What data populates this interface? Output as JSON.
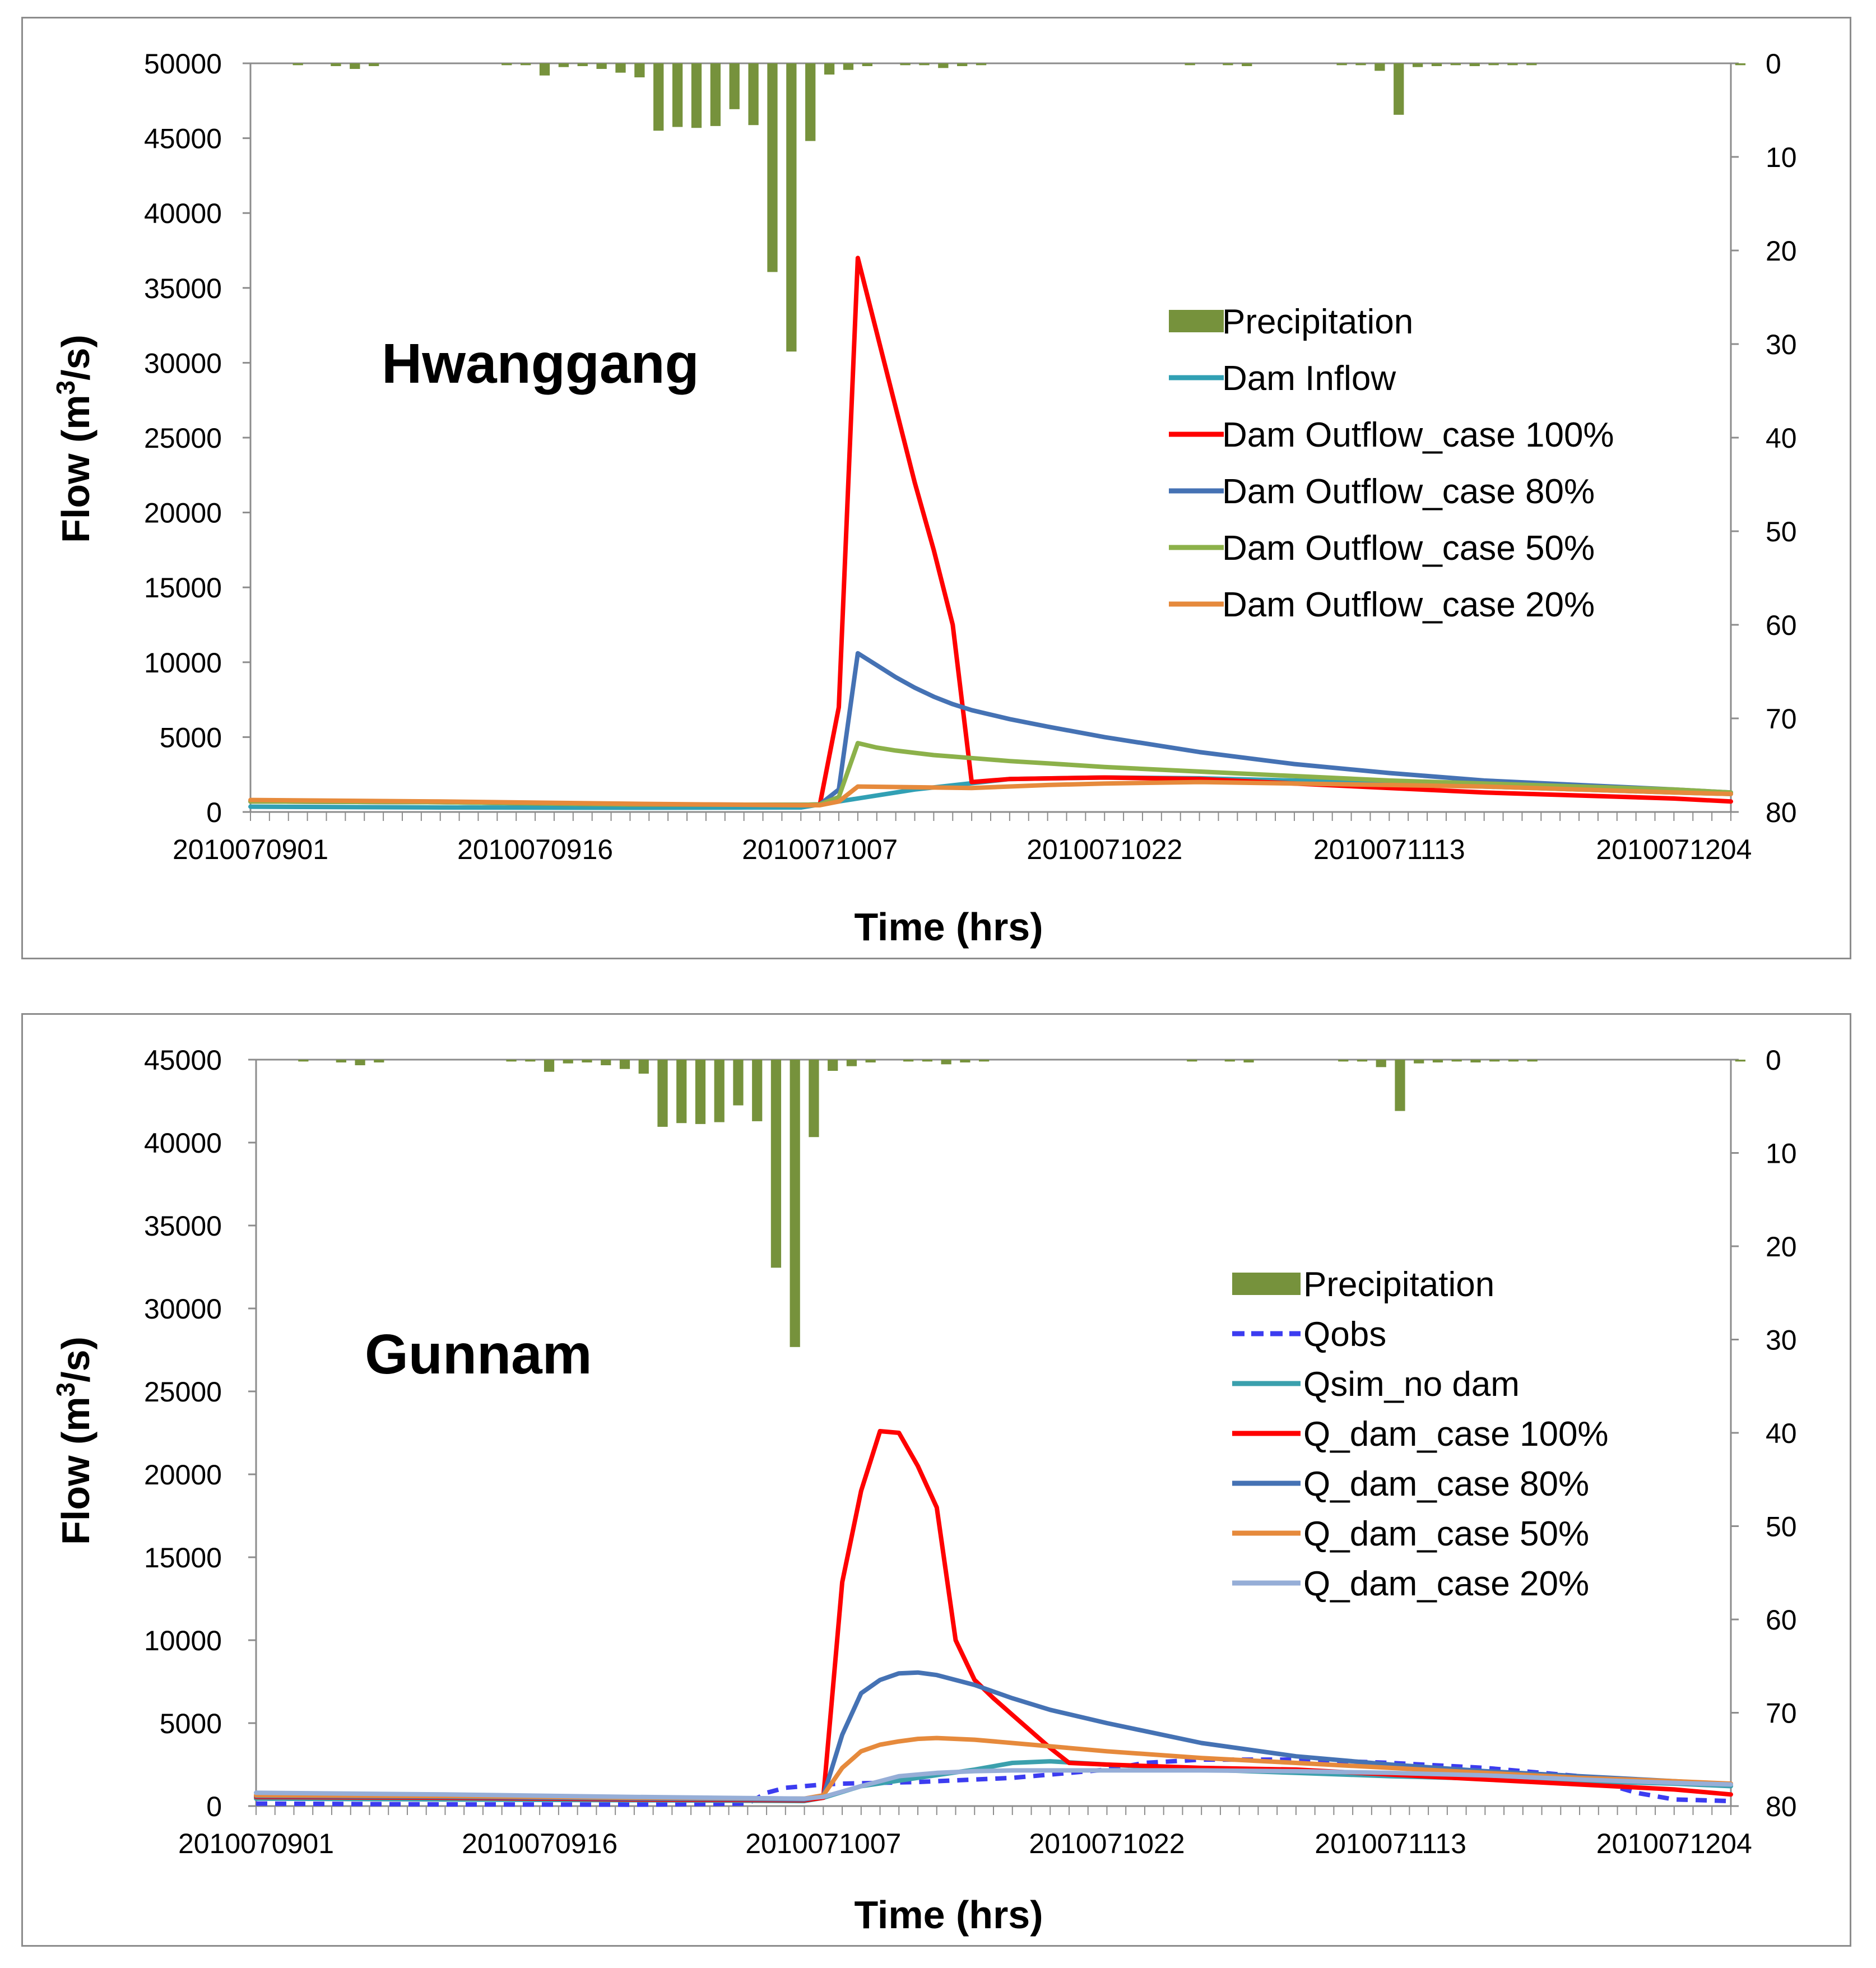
{
  "colors": {
    "precip": "#76923c",
    "dam_inflow": "#31a0b4",
    "case100": "#ff0000",
    "case80": "#4572b4",
    "case50_top": "#8cb14a",
    "case20_top": "#e68a3c",
    "qobs": "#3c3cf0",
    "qsim": "#3ba0ad",
    "case50_bottom": "#e68a3c",
    "case20_bottom": "#96aed7"
  },
  "chart_data": [
    {
      "id": "hwanggang",
      "type": "line",
      "title": "Hwanggang",
      "xlabel": "Time (hrs)",
      "ylabel": "Flow (m³/s)",
      "ylabel_left": {
        "main": "Flow (m",
        "sup": "3",
        "tail": "/s)"
      },
      "ylim": [
        0,
        50000
      ],
      "y_ticks": [
        0,
        5000,
        10000,
        15000,
        20000,
        25000,
        30000,
        35000,
        40000,
        45000,
        50000
      ],
      "y2_ticks": [
        0,
        10,
        20,
        30,
        40,
        50,
        60,
        70,
        80
      ],
      "y2lim": [
        0,
        80
      ],
      "y2_inverted": true,
      "x_range": [
        0,
        78
      ],
      "x_ticks": [
        0,
        15,
        30,
        45,
        60,
        75
      ],
      "x_tick_labels": [
        "2010070901",
        "2010070916",
        "2010071007",
        "2010071022",
        "2010071113",
        "2010071204"
      ],
      "precipitation": {
        "name": "Precipitation",
        "hours": [
          2,
          4,
          5,
          6,
          13,
          14,
          15,
          16,
          17,
          18,
          19,
          20,
          21,
          22,
          23,
          24,
          25,
          26,
          27,
          28,
          29,
          30,
          31,
          32,
          34,
          35,
          36,
          37,
          38,
          49,
          51,
          52,
          57,
          58,
          59,
          60,
          61,
          62,
          63,
          64,
          65,
          66,
          67,
          78
        ],
        "values": [
          0.2,
          0.3,
          0.6,
          0.3,
          0.2,
          0.2,
          1.3,
          0.4,
          0.3,
          0.6,
          1.0,
          1.5,
          7.2,
          6.8,
          6.9,
          6.7,
          4.9,
          6.6,
          22.3,
          30.8,
          8.3,
          1.2,
          0.7,
          0.3,
          0.2,
          0.2,
          0.5,
          0.3,
          0.2,
          0.2,
          0.2,
          0.3,
          0.2,
          0.2,
          0.8,
          5.5,
          0.4,
          0.3,
          0.2,
          0.3,
          0.2,
          0.2,
          0.2,
          0.2
        ]
      },
      "series": [
        {
          "name": "Dam Inflow",
          "colorKey": "dam_inflow",
          "dashed": false,
          "x": [
            0,
            10,
            20,
            29,
            30,
            35,
            40,
            45,
            50,
            55,
            60,
            65,
            70,
            75,
            78
          ],
          "y": [
            350,
            300,
            280,
            300,
            500,
            1500,
            2200,
            2300,
            2250,
            2100,
            2000,
            1700,
            1500,
            1300,
            1200
          ]
        },
        {
          "name": "Dam Outflow_case 100%",
          "colorKey": "case100",
          "dashed": false,
          "x": [
            0,
            10,
            20,
            29,
            30,
            31,
            32,
            33,
            34,
            35,
            36,
            37,
            38,
            39,
            40,
            45,
            50,
            55,
            60,
            65,
            70,
            75,
            78
          ],
          "y": [
            700,
            650,
            500,
            480,
            500,
            7000,
            37000,
            32000,
            27000,
            22000,
            17500,
            12500,
            2000,
            2100,
            2200,
            2300,
            2200,
            1900,
            1600,
            1300,
            1100,
            900,
            700
          ]
        },
        {
          "name": "Dam Outflow_case 80%",
          "colorKey": "case80",
          "dashed": false,
          "x": [
            0,
            10,
            20,
            29,
            30,
            31,
            32,
            33,
            34,
            35,
            36,
            37,
            38,
            40,
            42,
            45,
            50,
            55,
            60,
            65,
            70,
            75,
            78
          ],
          "y": [
            700,
            650,
            500,
            480,
            500,
            1500,
            10600,
            9800,
            9000,
            8300,
            7700,
            7200,
            6800,
            6200,
            5700,
            5000,
            4000,
            3200,
            2600,
            2100,
            1800,
            1500,
            1300
          ]
        },
        {
          "name": "Dam Outflow_case 50%",
          "colorKey": "case50_top",
          "dashed": false,
          "x": [
            0,
            10,
            20,
            29,
            30,
            31,
            32,
            33,
            34,
            35,
            36,
            37,
            38,
            40,
            42,
            45,
            50,
            55,
            60,
            65,
            70,
            75,
            78
          ],
          "y": [
            700,
            650,
            500,
            480,
            500,
            1000,
            4600,
            4300,
            4100,
            3950,
            3800,
            3700,
            3600,
            3400,
            3250,
            3000,
            2700,
            2400,
            2100,
            1900,
            1700,
            1500,
            1300
          ]
        },
        {
          "name": "Dam Outflow_case 20%",
          "colorKey": "case20_top",
          "dashed": false,
          "x": [
            0,
            10,
            20,
            29,
            30,
            31,
            32,
            35,
            38,
            42,
            45,
            50,
            55,
            60,
            65,
            70,
            75,
            78
          ],
          "y": [
            800,
            700,
            550,
            450,
            450,
            700,
            1700,
            1650,
            1600,
            1800,
            1900,
            2000,
            1900,
            1800,
            1700,
            1500,
            1300,
            1200
          ]
        }
      ]
    },
    {
      "id": "gunnam",
      "type": "line",
      "title": "Gunnam",
      "xlabel": "Time (hrs)",
      "ylabel": "Flow (m³/s)",
      "ylabel_left": {
        "main": "Flow (m",
        "sup": "3",
        "tail": "/s)"
      },
      "ylim": [
        0,
        45000
      ],
      "y_ticks": [
        0,
        5000,
        10000,
        15000,
        20000,
        25000,
        30000,
        35000,
        40000,
        45000
      ],
      "y2_ticks": [
        0,
        10,
        20,
        30,
        40,
        50,
        60,
        70,
        80
      ],
      "y2lim": [
        0,
        80
      ],
      "y2_inverted": true,
      "x_range": [
        0,
        78
      ],
      "x_ticks": [
        0,
        15,
        30,
        45,
        60,
        75
      ],
      "x_tick_labels": [
        "2010070901",
        "2010070916",
        "2010071007",
        "2010071022",
        "2010071113",
        "2010071204"
      ],
      "precipitation": {
        "name": "Precipitation",
        "hours": [
          2,
          4,
          5,
          6,
          13,
          14,
          15,
          16,
          17,
          18,
          19,
          20,
          21,
          22,
          23,
          24,
          25,
          26,
          27,
          28,
          29,
          30,
          31,
          32,
          34,
          35,
          36,
          37,
          38,
          49,
          51,
          52,
          57,
          58,
          59,
          60,
          61,
          62,
          63,
          64,
          65,
          66,
          67,
          78
        ],
        "values": [
          0.2,
          0.3,
          0.6,
          0.3,
          0.2,
          0.2,
          1.3,
          0.4,
          0.3,
          0.6,
          1.0,
          1.5,
          7.2,
          6.8,
          6.9,
          6.7,
          4.9,
          6.6,
          22.3,
          30.8,
          8.3,
          1.2,
          0.7,
          0.3,
          0.2,
          0.2,
          0.5,
          0.3,
          0.2,
          0.2,
          0.2,
          0.3,
          0.2,
          0.2,
          0.8,
          5.5,
          0.4,
          0.3,
          0.2,
          0.3,
          0.2,
          0.2,
          0.2,
          0.2
        ]
      },
      "series": [
        {
          "name": "Qobs",
          "colorKey": "qobs",
          "dashed": true,
          "x": [
            0,
            10,
            20,
            26,
            27,
            28,
            29,
            30,
            31,
            33,
            35,
            40,
            45,
            47,
            50,
            55,
            60,
            65,
            70,
            73,
            75,
            78
          ],
          "y": [
            150,
            100,
            80,
            150,
            800,
            1100,
            1200,
            1300,
            1350,
            1400,
            1450,
            1700,
            2200,
            2600,
            2800,
            2800,
            2600,
            2300,
            1800,
            800,
            400,
            300
          ]
        },
        {
          "name": "Qsim_no dam",
          "colorKey": "qsim",
          "dashed": false,
          "x": [
            0,
            10,
            20,
            29,
            30,
            32,
            35,
            38,
            40,
            42,
            45,
            50,
            55,
            60,
            65,
            70,
            75,
            78
          ],
          "y": [
            450,
            400,
            350,
            300,
            500,
            1200,
            1700,
            2200,
            2600,
            2700,
            2500,
            2200,
            2000,
            1800,
            1650,
            1500,
            1350,
            1200
          ]
        },
        {
          "name": "Q_dam_case 100%",
          "colorKey": "case100",
          "dashed": false,
          "x": [
            0,
            10,
            20,
            29,
            30,
            31,
            32,
            33,
            34,
            35,
            36,
            37,
            38,
            39,
            40,
            42,
            43,
            45,
            50,
            55,
            60,
            65,
            70,
            75,
            78
          ],
          "y": [
            550,
            500,
            400,
            350,
            500,
            13500,
            19000,
            22600,
            22500,
            20500,
            18000,
            10000,
            7600,
            6500,
            5500,
            3500,
            2600,
            2500,
            2300,
            2200,
            1900,
            1600,
            1300,
            1000,
            700
          ]
        },
        {
          "name": "Q_dam_case 80%",
          "colorKey": "case80",
          "dashed": false,
          "x": [
            0,
            10,
            20,
            29,
            30,
            31,
            32,
            33,
            34,
            35,
            36,
            38,
            40,
            42,
            45,
            50,
            55,
            60,
            65,
            70,
            75,
            78
          ],
          "y": [
            600,
            550,
            450,
            400,
            600,
            4300,
            6800,
            7600,
            8000,
            8050,
            7900,
            7300,
            6500,
            5800,
            5000,
            3800,
            3000,
            2500,
            2100,
            1800,
            1500,
            1300
          ]
        },
        {
          "name": "Q_dam_case 50%",
          "colorKey": "case50_bottom",
          "dashed": false,
          "x": [
            0,
            10,
            20,
            29,
            30,
            31,
            32,
            33,
            34,
            35,
            36,
            38,
            40,
            42,
            45,
            50,
            55,
            60,
            65,
            70,
            75,
            78
          ],
          "y": [
            650,
            600,
            500,
            450,
            650,
            2300,
            3300,
            3700,
            3900,
            4050,
            4100,
            4000,
            3800,
            3600,
            3300,
            2900,
            2600,
            2300,
            2000,
            1700,
            1500,
            1350
          ]
        },
        {
          "name": "Q_dam_case 20%",
          "colorKey": "case20_bottom",
          "dashed": false,
          "x": [
            0,
            10,
            20,
            29,
            30,
            32,
            34,
            36,
            38,
            40,
            42,
            45,
            50,
            55,
            60,
            65,
            70,
            75,
            78
          ],
          "y": [
            800,
            700,
            550,
            450,
            550,
            1200,
            1800,
            2000,
            2100,
            2150,
            2150,
            2150,
            2150,
            2100,
            2000,
            1850,
            1600,
            1400,
            1300
          ]
        }
      ]
    }
  ]
}
